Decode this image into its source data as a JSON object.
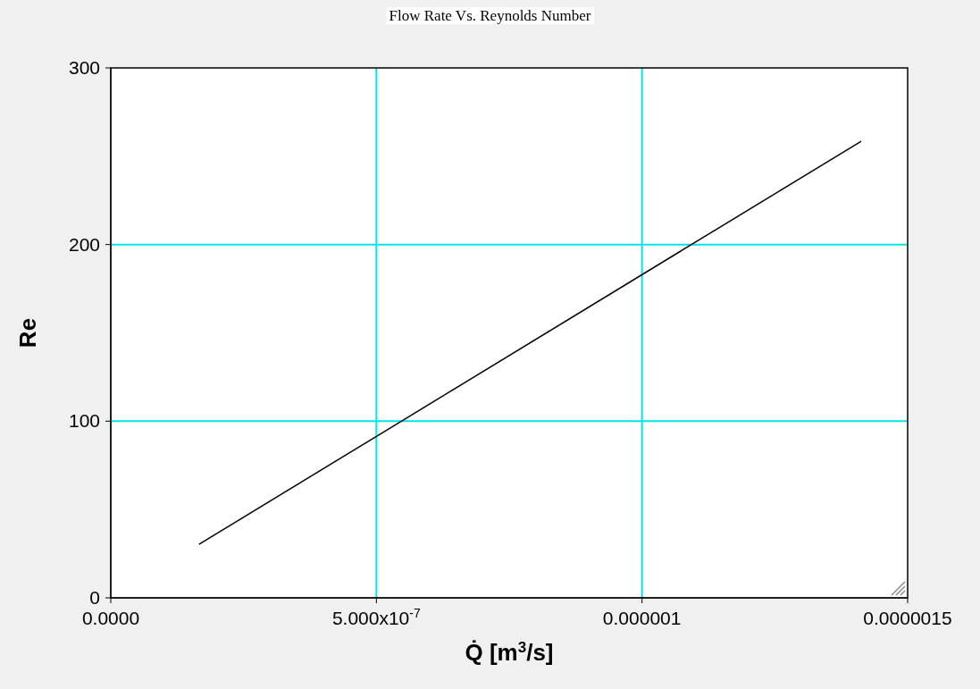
{
  "chart_data": {
    "type": "line",
    "title": "Flow Rate Vs. Reynolds Number",
    "xlabel": "Q̇  [m$^{3}$/s]",
    "ylabel": "Re",
    "x": [
      1.66e-07,
      5e-07,
      1.4125e-06
    ],
    "series": [
      {
        "color": "#000000",
        "values": [
          30.3,
          91.4,
          258.5
        ]
      }
    ],
    "xlim": [
      0,
      1.5e-06
    ],
    "xticks": [
      {
        "value": 0,
        "label": "0.0000"
      },
      {
        "value": 5e-07,
        "label": "5.000x10$^{-7}$"
      },
      {
        "value": 1e-06,
        "label": "0.000001"
      },
      {
        "value": 1.5e-06,
        "label": "0.0000015"
      }
    ],
    "ylim": [
      0,
      300
    ],
    "yticks": [
      0,
      100,
      200,
      300
    ],
    "grid": true,
    "marker": "none",
    "line_style": "solid"
  }
}
